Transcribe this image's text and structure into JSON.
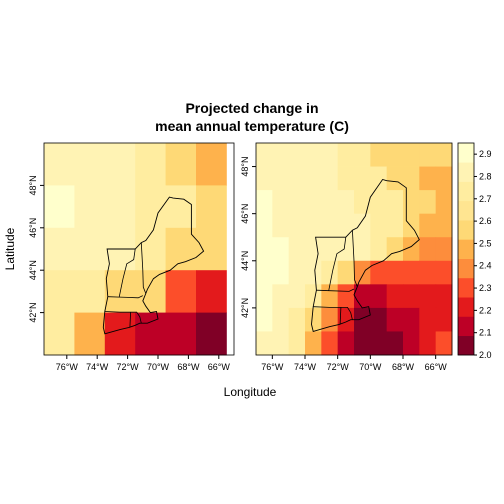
{
  "title_line1": "Projected change in",
  "title_line2": "mean annual temperature (C)",
  "xlabel": "Longitude",
  "ylabel": "Latitude",
  "x_ticks": [
    "76°W",
    "74°W",
    "72°W",
    "70°W",
    "68°W",
    "66°W"
  ],
  "y_ticks": [
    "42°N",
    "44°N",
    "46°N",
    "48°N"
  ],
  "colorbar": {
    "ticks": [
      "2.0",
      "2.1",
      "2.2",
      "2.3",
      "2.4",
      "2.5",
      "2.6",
      "2.7",
      "2.8",
      "2.9"
    ],
    "min": 2.0,
    "max": 2.95,
    "colors": [
      "#800026",
      "#bd0026",
      "#e31a1c",
      "#fc4e2a",
      "#fd8d3c",
      "#feb24c",
      "#fed976",
      "#ffe591",
      "#ffeda0",
      "#fff3b4",
      "#ffffcc"
    ]
  },
  "chart_data": [
    {
      "type": "heatmap",
      "name": "coarse",
      "lon_range": [
        -77.5,
        -65
      ],
      "lat_range": [
        40,
        50
      ],
      "lons": [
        -76.5,
        -74.5,
        -72.5,
        -70.5,
        -68.5,
        -66.5
      ],
      "lats": [
        49,
        47,
        45,
        43,
        41
      ],
      "values": [
        [
          2.8,
          2.8,
          2.8,
          2.75,
          2.55,
          2.45
        ],
        [
          2.95,
          2.8,
          2.8,
          2.75,
          2.7,
          2.55
        ],
        [
          2.8,
          2.8,
          2.8,
          2.7,
          2.55,
          2.55
        ],
        [
          2.75,
          2.75,
          2.6,
          2.55,
          2.3,
          2.2
        ],
        [
          2.75,
          2.45,
          2.2,
          2.1,
          2.1,
          2.0
        ]
      ]
    },
    {
      "type": "heatmap",
      "name": "fine",
      "lon_range": [
        -77,
        -65
      ],
      "lat_range": [
        40,
        49
      ],
      "lons": [
        -76.5,
        -75.5,
        -74.5,
        -73.5,
        -72.5,
        -71.5,
        -70.5,
        -69.5,
        -68.5,
        -67.5,
        -66.5,
        -65.5
      ],
      "lats": [
        48.5,
        47.5,
        46.5,
        45.5,
        44.5,
        43.5,
        42.5,
        41.5,
        40.5
      ],
      "values": [
        [
          2.8,
          2.8,
          2.8,
          2.8,
          2.8,
          2.7,
          2.7,
          2.6,
          2.6,
          2.6,
          2.6,
          2.6
        ],
        [
          2.85,
          2.8,
          2.8,
          2.8,
          2.8,
          2.7,
          2.7,
          2.7,
          2.6,
          2.6,
          2.5,
          2.5
        ],
        [
          2.9,
          2.85,
          2.8,
          2.8,
          2.8,
          2.8,
          2.7,
          2.7,
          2.7,
          2.6,
          2.6,
          2.5
        ],
        [
          2.9,
          2.85,
          2.85,
          2.8,
          2.8,
          2.8,
          2.8,
          2.7,
          2.7,
          2.6,
          2.5,
          2.5
        ],
        [
          2.9,
          2.9,
          2.85,
          2.8,
          2.8,
          2.8,
          2.8,
          2.7,
          2.6,
          2.5,
          2.4,
          2.4
        ],
        [
          2.9,
          2.9,
          2.85,
          2.8,
          2.7,
          2.6,
          2.4,
          2.3,
          2.3,
          2.3,
          2.3,
          2.3
        ],
        [
          2.9,
          2.85,
          2.8,
          2.7,
          2.5,
          2.3,
          2.1,
          2.1,
          2.2,
          2.2,
          2.2,
          2.2
        ],
        [
          2.9,
          2.8,
          2.7,
          2.6,
          2.4,
          2.2,
          2.0,
          2.0,
          2.1,
          2.1,
          2.2,
          2.2
        ],
        [
          2.85,
          2.8,
          2.7,
          2.5,
          2.3,
          2.1,
          2.0,
          2.0,
          2.0,
          2.1,
          2.2,
          2.3
        ]
      ]
    }
  ]
}
